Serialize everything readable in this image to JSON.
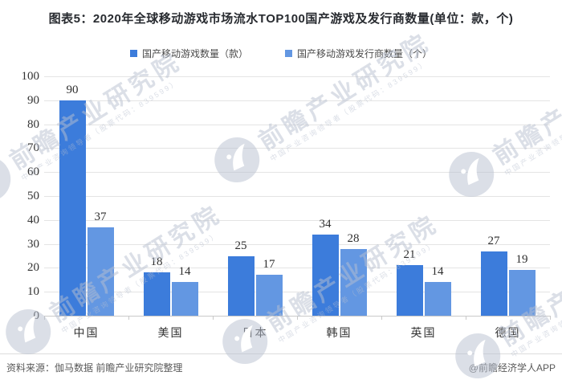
{
  "title": "图表5：2020年全球移动游戏市场流水TOP100国产游戏及发行商数量(单位：款，个)",
  "legend": [
    {
      "label": "国产移动游戏数量（款）",
      "color": "#3c7cdb"
    },
    {
      "label": "国产移动游戏发行商数量（个）",
      "color": "#6397e2"
    }
  ],
  "chart_data": {
    "type": "bar",
    "categories": [
      "中国",
      "美国",
      "日本",
      "韩国",
      "英国",
      "德国"
    ],
    "series": [
      {
        "name": "国产移动游戏数量（款）",
        "color": "#3c7cdb",
        "values": [
          90,
          18,
          25,
          34,
          21,
          27
        ]
      },
      {
        "name": "国产移动游戏发行商数量（个）",
        "color": "#6397e2",
        "values": [
          37,
          14,
          17,
          28,
          14,
          19
        ]
      }
    ],
    "title": "2020年全球移动游戏市场流水TOP100国产游戏及发行商数量",
    "xlabel": "",
    "ylabel": "",
    "ylim": [
      0,
      100
    ],
    "ytick_step": 10,
    "grid": true,
    "legend_position": "top"
  },
  "watermark": {
    "text": "前瞻产业研究院",
    "subtext": "中国产业咨询领导者（股票代码：839599）"
  },
  "footer": {
    "source": "资料来源：伽马数据 前瞻产业研究院整理",
    "credit": "@前瞻经济学人APP"
  }
}
